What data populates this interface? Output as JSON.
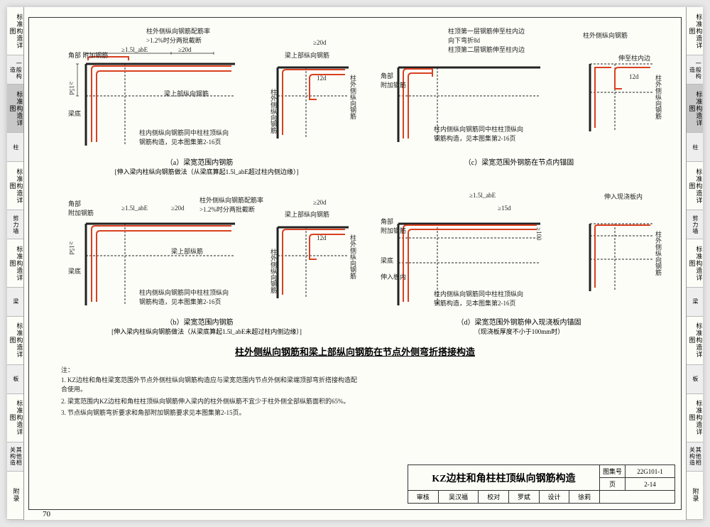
{
  "tabs_left": [
    {
      "label": "标准构造详图",
      "sub": "一般构造",
      "hl": false
    },
    {
      "label": "标准构造详图",
      "sub": "柱",
      "hl": true
    },
    {
      "label": "标准构造详图",
      "sub": "剪力墙",
      "hl": false
    },
    {
      "label": "标准构造详图",
      "sub": "梁",
      "hl": false
    },
    {
      "label": "标准构造详图",
      "sub": "板",
      "hl": false
    },
    {
      "label": "标准构造详图",
      "sub": "其他相关构造",
      "hl": false
    },
    {
      "label": "附录",
      "sub": "",
      "hl": false
    }
  ],
  "tabs_right": [
    {
      "label": "标准构造详图",
      "sub": "一般构造",
      "hl": false
    },
    {
      "label": "标准构造详图",
      "sub": "柱",
      "hl": true
    },
    {
      "label": "标准构造详图",
      "sub": "剪力墙",
      "hl": false
    },
    {
      "label": "标准构造详图",
      "sub": "梁",
      "hl": false
    },
    {
      "label": "标准构造详图",
      "sub": "板",
      "hl": false
    },
    {
      "label": "标准构造详图",
      "sub": "其他相关构造",
      "hl": false
    },
    {
      "label": "附录",
      "sub": "",
      "hl": false
    }
  ],
  "colors": {
    "rebar": "#d84020",
    "line": "#222",
    "dash": "#555"
  },
  "diagrams": {
    "a": {
      "corner_label": "角部\n附加钢筋",
      "dim1": "≥1.5l_abE",
      "dim2": "≥20d",
      "dim3": "≥15d",
      "note_top": "柱外侧纵向钢筋配筋率\n>1.2%时分两批截断",
      "beam_bot": "梁底",
      "beam_top": "梁上部纵向钢筋",
      "col_out": "柱外侧纵向钢筋",
      "note_bot": "柱内侧纵向钢筋同中柱柱顶纵向\n钢筋构造，见本图集第2-16页",
      "caption": "（a）梁宽范围内钢筋",
      "subcap": "[伸入梁内柱纵向钢筋做法（从梁底算起1.5l_abE超过柱内侧边缘）]"
    },
    "a2": {
      "dim_top": "≥20d",
      "beam_top": "梁上部纵向钢筋",
      "dim_12d": "12d",
      "col_out": "柱外侧纵向钢筋"
    },
    "b": {
      "corner_label": "角部\n附加钢筋",
      "dim1": "≥1.5l_abE",
      "dim2": "≥20d",
      "dim3": "≥15d",
      "note_top": "柱外侧纵向钢筋配筋率\n>1.2%时分两批截断",
      "beam_bot": "梁底",
      "beam_top": "梁上部纵筋",
      "note_bot": "柱内侧纵向钢筋同中柱柱顶纵向\n钢筋构造，见本图集第2-16页",
      "caption": "（b）梁宽范围内钢筋",
      "subcap": "[伸入梁内柱纵向钢筋做法（从梁底算起1.5l_abE未超过柱内侧边缘）]"
    },
    "b2": {
      "dim_top": "≥20d",
      "beam_top": "梁上部纵向钢筋",
      "dim_12d": "12d",
      "col_out": "柱外侧纵向钢筋"
    },
    "c": {
      "corner_label": "角部\n附加钢筋",
      "note1": "柱顶第一层钢筋伸至柱内边\n向下弯折8d",
      "note2": "柱顶第二层钢筋伸至柱内边",
      "col_out": "柱外侧纵向钢筋",
      "ext": "伸至柱内边",
      "dim_12d": "12d",
      "note_bot": "柱内侧纵向钢筋同中柱柱顶纵向\n钢筋构造，见本图集第2-16页",
      "caption": "（c）梁宽范围外钢筋在节点内锚固"
    },
    "d": {
      "corner_label": "角部\n附加钢筋",
      "dim1": "≥1.5l_abE",
      "dim3": "≥15d",
      "dim_100": "≥100",
      "into_slab": "伸入现浇板内",
      "beam_bot": "梁底",
      "col_out": "柱外侧纵向钢筋",
      "into_slab2": "伸入板内",
      "note_bot": "柱内侧纵向钢筋同中柱柱顶纵向\n钢筋构造，见本图集第2-16页",
      "caption": "（d）梁宽范围外钢筋伸入现浇板内锚固",
      "subcap": "（现浇板厚度不小于100mm时）"
    }
  },
  "main_title": "柱外侧纵向钢筋和梁上部纵向钢筋在节点外侧弯折搭接构造",
  "notes_header": "注：",
  "notes": [
    "1. KZ边柱和角柱梁宽范围外节点外侧柱纵向钢筋构造应与梁宽范围内节点外侧和梁端顶部弯折搭接构造配合使用。",
    "2. 梁宽范围内KZ边柱和角柱柱顶纵向钢筋伸入梁内的柱外侧纵筋不宜少于柱外侧全部纵筋面积的65%。",
    "3. 节点纵向钢筋弯折要求和角部附加钢筋要求见本图集第2-15页。"
  ],
  "titleblock": {
    "main": "KZ边柱和角柱柱顶纵向钢筋构造",
    "set_lbl": "图集号",
    "set": "22G101-1",
    "rev_lbl": "审核",
    "rev_name": "吴汉福",
    "chk_lbl": "校对",
    "chk_name": "罗斌",
    "des_lbl": "设计",
    "des_name": "徐莉",
    "page_lbl": "页",
    "page": "2-14"
  },
  "page_num": "70"
}
